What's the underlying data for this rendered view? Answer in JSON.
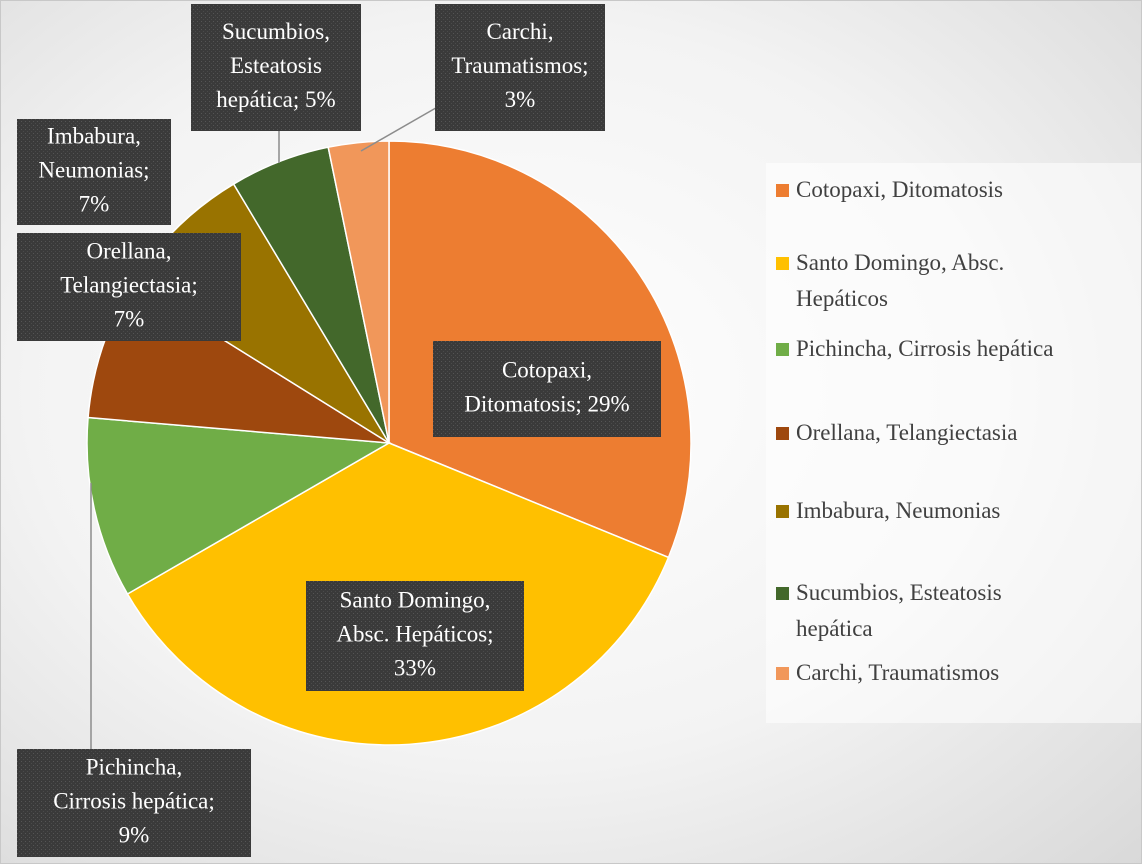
{
  "chart_data": {
    "type": "pie",
    "categories": [
      "Cotopaxi, Ditomatosis",
      "Santo Domingo, Absc. Hepáticos",
      "Pichincha, Cirrosis hepática",
      "Orellana, Telangiectasia",
      "Imbabura, Neumonias",
      "Sucumbios, Esteatosis hepática",
      "Carchi, Traumatismos"
    ],
    "values": [
      29,
      33,
      9,
      7,
      7,
      5,
      3
    ],
    "value_labels": [
      [
        "Cotopaxi,",
        "Ditomatosis; 29%"
      ],
      [
        "Santo Domingo,",
        "Absc. Hepáticos;",
        "33%"
      ],
      [
        "Pichincha,",
        "Cirrosis hepática;",
        "9%"
      ],
      [
        "Orellana,",
        "Telangiectasia;",
        "7%"
      ],
      [
        "Imbabura,",
        "Neumonias;",
        "7%"
      ],
      [
        "Sucumbios,",
        "Esteatosis",
        "hepática; 5%"
      ],
      [
        "Carchi,",
        "Traumatismos;",
        "3%"
      ]
    ],
    "colors": [
      "#ED7D31",
      "#FFC000",
      "#70AD47",
      "#9E480E",
      "#997300",
      "#43682B",
      "#F1975A"
    ],
    "legend": "right"
  }
}
